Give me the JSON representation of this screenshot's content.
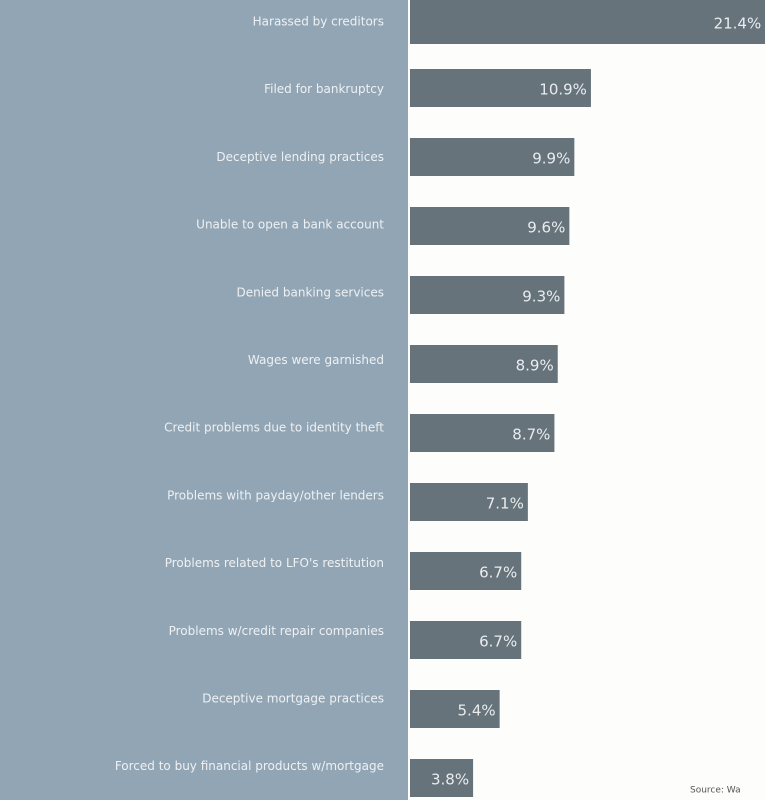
{
  "chart_data": {
    "type": "bar",
    "orientation": "horizontal",
    "categories": [
      "Harassed by creditors",
      "Filed for bankruptcy",
      "Deceptive lending practices",
      "Unable to open a bank account",
      "Denied banking services",
      "Wages were garnished",
      "Credit problems due to identity theft",
      "Problems with payday/other lenders",
      "Problems related to LFO's restitution",
      "Problems w/credit repair companies",
      "Deceptive mortgage practices",
      "Forced to buy financial products w/mortgage"
    ],
    "values": [
      21.4,
      10.9,
      9.9,
      9.6,
      9.3,
      8.9,
      8.7,
      7.1,
      6.7,
      6.7,
      5.4,
      3.8
    ],
    "value_labels": [
      "21.4%",
      "10.9%",
      "9.9%",
      "9.6%",
      "9.3%",
      "8.9%",
      "8.7%",
      "7.1%",
      "6.7%",
      "6.7%",
      "5.4%",
      "3.8%"
    ],
    "color": "#66737b",
    "source": "Source: Wa"
  }
}
